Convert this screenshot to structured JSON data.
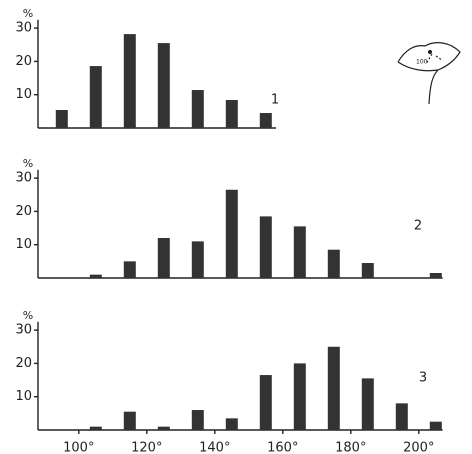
{
  "chart_data": [
    {
      "type": "bar",
      "label": "1",
      "y_unit": "%",
      "x": [
        95,
        105,
        115,
        125,
        135,
        145,
        155
      ],
      "values": [
        5.4,
        18.6,
        28.2,
        25.5,
        11.4,
        8.4,
        4.5
      ],
      "color": "#333333",
      "xlim": [
        88,
        158
      ],
      "ylim": [
        0,
        32.5
      ],
      "yticks": [
        10,
        20,
        30
      ]
    },
    {
      "type": "bar",
      "label": "2",
      "y_unit": "%",
      "x": [
        105,
        115,
        125,
        135,
        145,
        155,
        165,
        175,
        185,
        205
      ],
      "values": [
        1,
        5,
        12,
        11,
        26.5,
        18.5,
        15.5,
        8.5,
        4.5,
        1.5
      ],
      "color": "#333333",
      "xlim": [
        88,
        207
      ],
      "ylim": [
        0,
        32.5
      ],
      "yticks": [
        10,
        20,
        30
      ]
    },
    {
      "type": "bar",
      "label": "3",
      "y_unit": "%",
      "x": [
        105,
        115,
        125,
        135,
        145,
        155,
        165,
        175,
        185,
        195,
        205
      ],
      "values": [
        1,
        5.5,
        1,
        6,
        3.5,
        16.5,
        20,
        25,
        15.5,
        8,
        2.5
      ],
      "color": "#333333",
      "xlim": [
        88,
        207
      ],
      "ylim": [
        0,
        32.5
      ],
      "yticks": [
        10,
        20,
        30
      ],
      "xticks": [
        {
          "value": 100,
          "label": "100°"
        },
        {
          "value": 120,
          "label": "120°"
        },
        {
          "value": 140,
          "label": "140°"
        },
        {
          "value": 160,
          "label": "160°"
        },
        {
          "value": 180,
          "label": "180°"
        },
        {
          "value": 200,
          "label": "200°"
        }
      ]
    }
  ]
}
